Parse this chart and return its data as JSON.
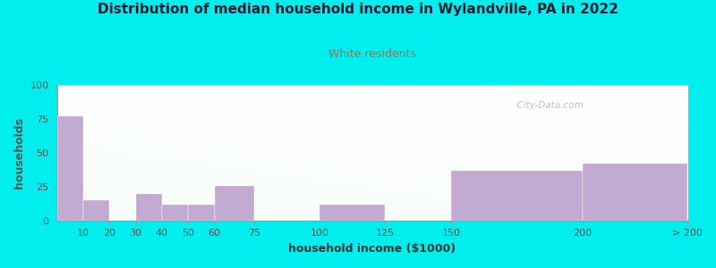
{
  "title": "Distribution of median household income in Wylandville, PA in 2022",
  "subtitle": "White residents",
  "xlabel": "household income ($1000)",
  "ylabel": "households",
  "background_color": "#00EEEE",
  "bar_color": "#c2aad0",
  "bar_edge_color": "#c2aad0",
  "title_color": "#1a1a2e",
  "subtitle_color": "#a07050",
  "tick_color": "#555555",
  "categories": [
    "10",
    "20",
    "30",
    "40",
    "50",
    "60",
    "75",
    "100",
    "125",
    "150",
    "200",
    "> 200"
  ],
  "values": [
    77,
    15,
    0,
    20,
    12,
    12,
    26,
    0,
    12,
    0,
    37,
    42
  ],
  "ylim": [
    0,
    100
  ],
  "yticks": [
    0,
    25,
    50,
    75,
    100
  ],
  "watermark": "  City-Data.com"
}
